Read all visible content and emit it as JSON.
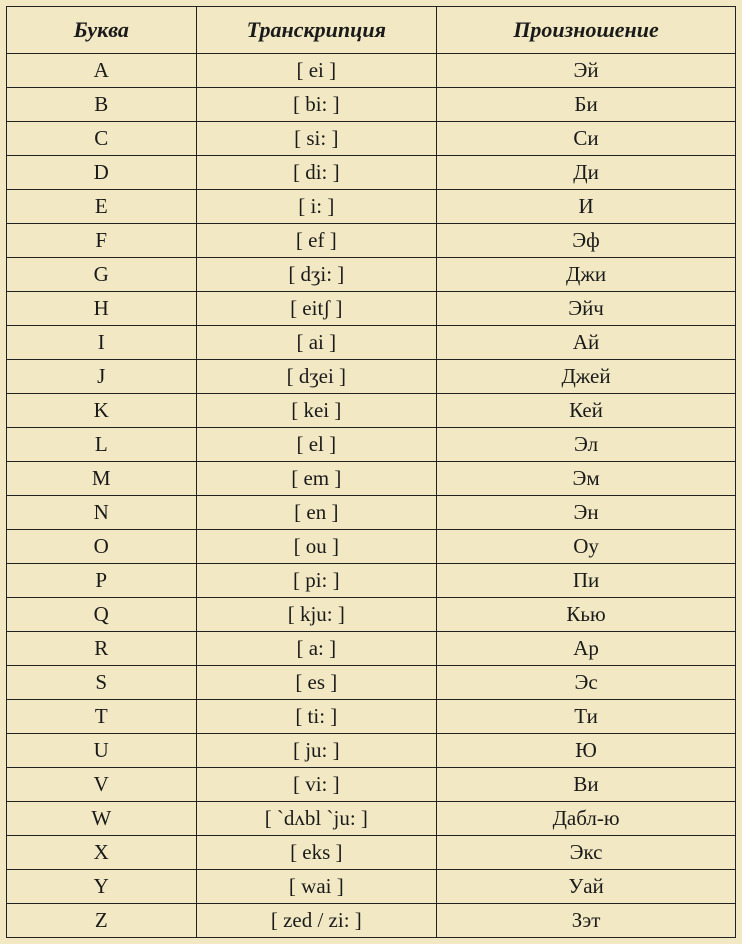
{
  "table": {
    "type": "table",
    "background_color": "#f2e9c4",
    "border_color": "#222222",
    "text_color": "#1a1a1a",
    "header_fontsize": 22,
    "cell_fontsize": 21,
    "header_font_style": "italic bold",
    "font_family": "Times New Roman",
    "column_widths_pct": [
      26,
      33,
      41
    ],
    "columns": [
      "Буква",
      "Транскрипция",
      "Произношение"
    ],
    "rows": [
      [
        "A",
        "[ ei ]",
        "Эй"
      ],
      [
        "B",
        "[ bi: ]",
        "Би"
      ],
      [
        "C",
        "[ si: ]",
        "Си"
      ],
      [
        "D",
        "[ di: ]",
        "Ди"
      ],
      [
        "E",
        "[ i: ]",
        "И"
      ],
      [
        "F",
        "[ ef ]",
        "Эф"
      ],
      [
        "G",
        "[ dʒi: ]",
        "Джи"
      ],
      [
        "H",
        "[ eitʃ ]",
        "Эйч"
      ],
      [
        "I",
        "[ ai ]",
        "Ай"
      ],
      [
        "J",
        "[ dʒei ]",
        "Джей"
      ],
      [
        "K",
        "[ kei ]",
        "Кей"
      ],
      [
        "L",
        "[ el ]",
        "Эл"
      ],
      [
        "M",
        "[ em ]",
        "Эм"
      ],
      [
        "N",
        "[ en ]",
        "Эн"
      ],
      [
        "O",
        "[ ou ]",
        "Оу"
      ],
      [
        "P",
        "[ pi: ]",
        "Пи"
      ],
      [
        "Q",
        "[ kju: ]",
        "Кью"
      ],
      [
        "R",
        "[ a: ]",
        "Ар"
      ],
      [
        "S",
        "[ es ]",
        "Эс"
      ],
      [
        "T",
        "[ ti: ]",
        "Ти"
      ],
      [
        "U",
        "[ ju: ]",
        "Ю"
      ],
      [
        "V",
        "[ vi: ]",
        "Ви"
      ],
      [
        "W",
        "[ `dʌbl `ju: ]",
        "Дабл-ю"
      ],
      [
        "X",
        "[ eks ]",
        "Экс"
      ],
      [
        "Y",
        "[ wai ]",
        "Уай"
      ],
      [
        "Z",
        "[ zed / zi: ]",
        "Зэт"
      ]
    ]
  }
}
